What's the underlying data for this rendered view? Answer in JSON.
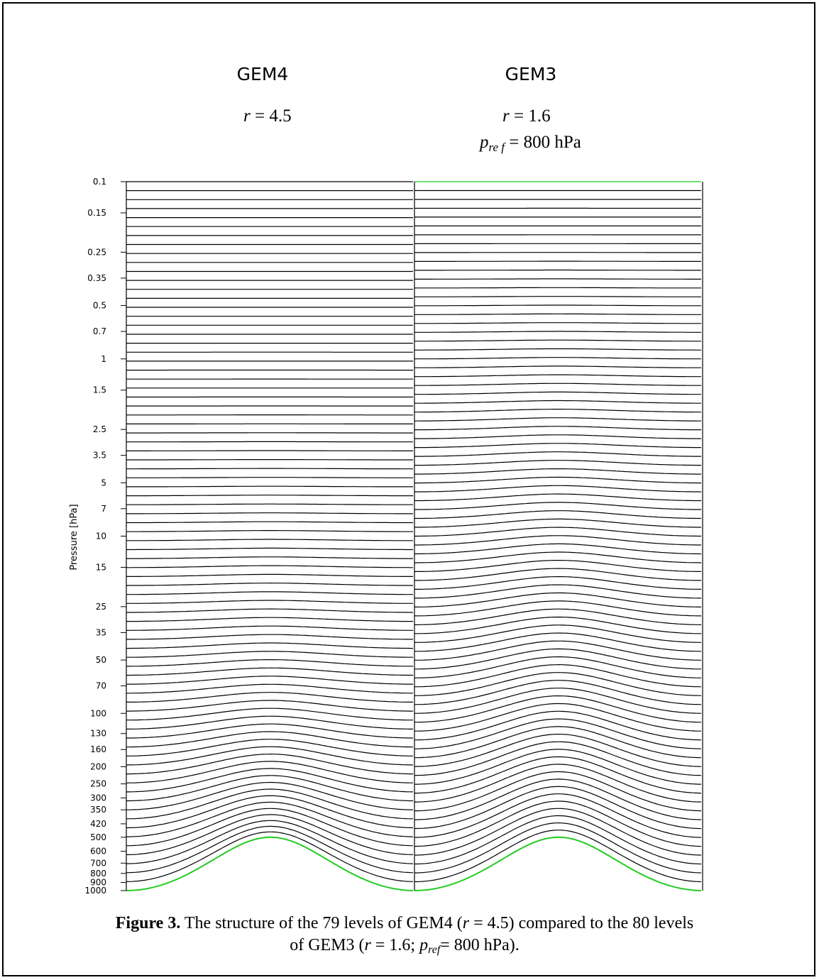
{
  "chart_data": {
    "type": "line",
    "panels": [
      {
        "title": "GEM4",
        "r_label": "r",
        "r_value": "4.5",
        "levels": 79
      },
      {
        "title": "GEM3",
        "r_label": "r",
        "r_value": "1.6",
        "pref_label": "p",
        "pref_sub": "re f",
        "pref_value": "800 hPa",
        "levels": 80
      }
    ],
    "ylabel": "Pressure [hPa]",
    "y_scale": "log",
    "ylim": [
      1000,
      0.1
    ],
    "y_ticks": [
      0.1,
      0.15,
      0.25,
      0.35,
      0.5,
      0.7,
      1,
      1.5,
      2.5,
      3.5,
      5,
      7,
      10,
      15,
      25,
      35,
      50,
      70,
      100,
      130,
      160,
      200,
      250,
      300,
      350,
      420,
      500,
      600,
      700,
      800,
      900,
      1000
    ],
    "y_tick_labels": [
      "0.1",
      "0.15",
      "0.25",
      "0.35",
      "0.5",
      "0.7",
      "1",
      "1.5",
      "2.5",
      "3.5",
      "5",
      "7",
      "10",
      "15",
      "25",
      "35",
      "50",
      "70",
      "100",
      "130",
      "160",
      "200",
      "250",
      "300",
      "350",
      "420",
      "500",
      "600",
      "700",
      "800",
      "900",
      "1000"
    ],
    "topography": {
      "min_surface_pressure": 500,
      "max_surface_pressure": 1000,
      "color": "#22cc22"
    }
  },
  "colors": {
    "level_lines": "#000000",
    "surface": "#22cc22",
    "top": "#22cc22"
  },
  "caption": {
    "label": "Figure 3.",
    "text_1": " The structure of the 79 levels of GEM4 (",
    "r1": "r",
    "text_2": " = 4.5) compared to the 80 levels of GEM3 (",
    "r2": "r",
    "text_3": " = 1.6; ",
    "p": "p",
    "pref_sub": "ref",
    "text_4": "= 800 hPa)."
  }
}
